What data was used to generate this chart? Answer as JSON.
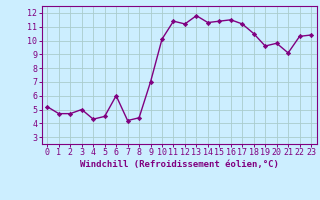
{
  "x": [
    0,
    1,
    2,
    3,
    4,
    5,
    6,
    7,
    8,
    9,
    10,
    11,
    12,
    13,
    14,
    15,
    16,
    17,
    18,
    19,
    20,
    21,
    22,
    23
  ],
  "y": [
    5.2,
    4.7,
    4.7,
    5.0,
    4.3,
    4.5,
    6.0,
    4.2,
    4.4,
    7.0,
    10.1,
    11.4,
    11.2,
    11.8,
    11.3,
    11.4,
    11.5,
    11.2,
    10.5,
    9.6,
    9.8,
    9.1,
    10.3,
    10.4
  ],
  "line_color": "#800080",
  "marker": "D",
  "marker_size": 2.2,
  "background_color": "#cceeff",
  "grid_color": "#aacccc",
  "xlabel": "Windchill (Refroidissement éolien,°C)",
  "xlim": [
    -0.5,
    23.5
  ],
  "ylim": [
    2.5,
    12.5
  ],
  "yticks": [
    3,
    4,
    5,
    6,
    7,
    8,
    9,
    10,
    11,
    12
  ],
  "xticks": [
    0,
    1,
    2,
    3,
    4,
    5,
    6,
    7,
    8,
    9,
    10,
    11,
    12,
    13,
    14,
    15,
    16,
    17,
    18,
    19,
    20,
    21,
    22,
    23
  ],
  "tick_color": "#800080",
  "label_color": "#800080",
  "label_fontsize": 6.5,
  "tick_fontsize": 6.0,
  "linewidth": 1.0
}
